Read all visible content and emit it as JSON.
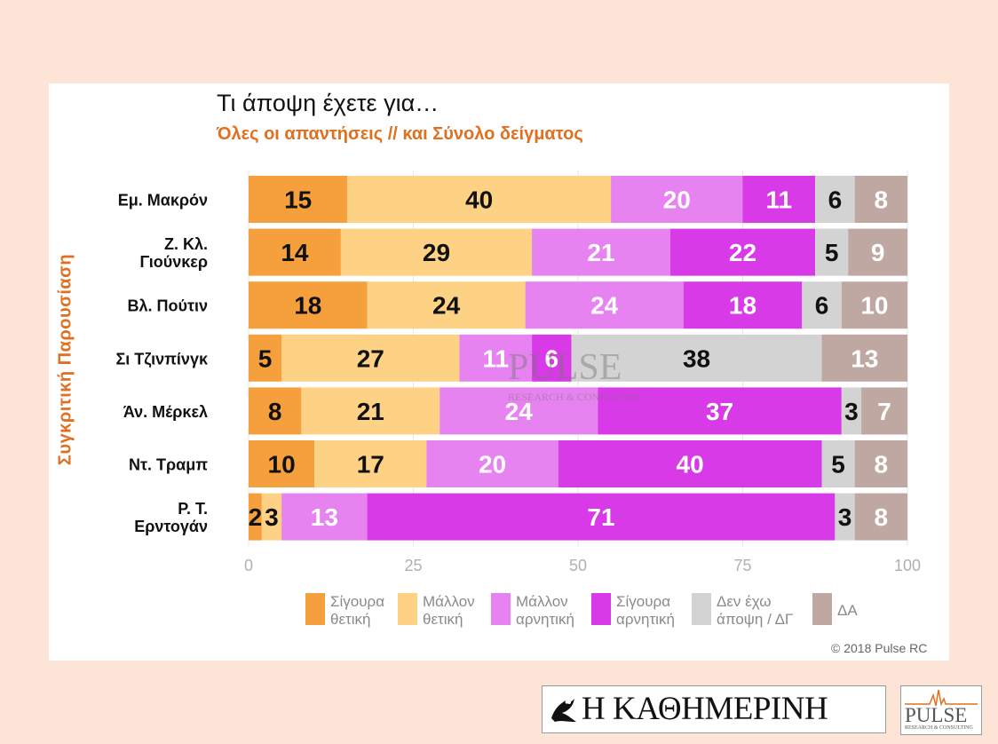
{
  "header": {
    "title": "Τι άποψη έχετε για…",
    "subtitle": "Όλες οι απαντήσεις // και Σύνολο δείγματος",
    "side_label": "Συγκριτική  Παρουσίαση"
  },
  "footer": {
    "copyright": "© 2018 Pulse RC",
    "newspaper": "Η ΚΑΘΗΜΕΡΙΝΗ",
    "pulse_word": "PULSE",
    "pulse_sub": "RESEARCH & CONSULTING"
  },
  "watermark": {
    "word": "PULSE",
    "sub": "RESEARCH & CONSULTING"
  },
  "chart_data": {
    "type": "bar",
    "orientation": "horizontal",
    "stacked": true,
    "xlim": [
      0,
      100
    ],
    "xticks": [
      "0",
      "25",
      "50",
      "75",
      "100"
    ],
    "grid": true,
    "legend_position": "bottom",
    "categories": [
      [
        "Εμ. Μακρόν"
      ],
      [
        "Ζ. Κλ.",
        "Γιούνκερ"
      ],
      [
        "Βλ. Πούτιν"
      ],
      [
        "Σι Τζινπίνγκ"
      ],
      [
        "Άν. Μέρκελ"
      ],
      [
        "Ντ. Τραμπ"
      ],
      [
        "Ρ. Τ.",
        "Ερντογάν"
      ]
    ],
    "series": [
      {
        "name": "Σίγουρα θετική",
        "legend": [
          "Σίγουρα",
          "θετική"
        ],
        "color": "#f5a03c",
        "label_color": "#111111",
        "values": [
          15,
          14,
          18,
          5,
          8,
          10,
          2
        ]
      },
      {
        "name": "Μάλλον θετική",
        "legend": [
          "Μάλλον",
          "θετική"
        ],
        "color": "#fdd284",
        "label_color": "#111111",
        "values": [
          40,
          29,
          24,
          27,
          21,
          17,
          3
        ]
      },
      {
        "name": "Μάλλον αρνητική",
        "legend": [
          "Μάλλον",
          "αρνητική"
        ],
        "color": "#e683f0",
        "label_color": "#ffffff",
        "values": [
          20,
          21,
          24,
          11,
          24,
          20,
          13
        ]
      },
      {
        "name": "Σίγουρα αρνητική",
        "legend": [
          "Σίγουρα",
          "αρνητική"
        ],
        "color": "#d73ae6",
        "label_color": "#ffffff",
        "values": [
          11,
          22,
          18,
          6,
          37,
          40,
          71
        ]
      },
      {
        "name": "Δεν έχω άποψη / ΔΓ",
        "legend": [
          "Δεν έχω",
          "άποψη / ΔΓ"
        ],
        "color": "#d3d3d3",
        "label_color": "#111111",
        "values": [
          6,
          5,
          6,
          38,
          3,
          5,
          3
        ]
      },
      {
        "name": "ΔΑ",
        "legend": [
          "ΔΑ"
        ],
        "color": "#bfa8a2",
        "label_color": "#ffffff",
        "values": [
          8,
          9,
          10,
          13,
          7,
          8,
          8
        ]
      }
    ]
  }
}
